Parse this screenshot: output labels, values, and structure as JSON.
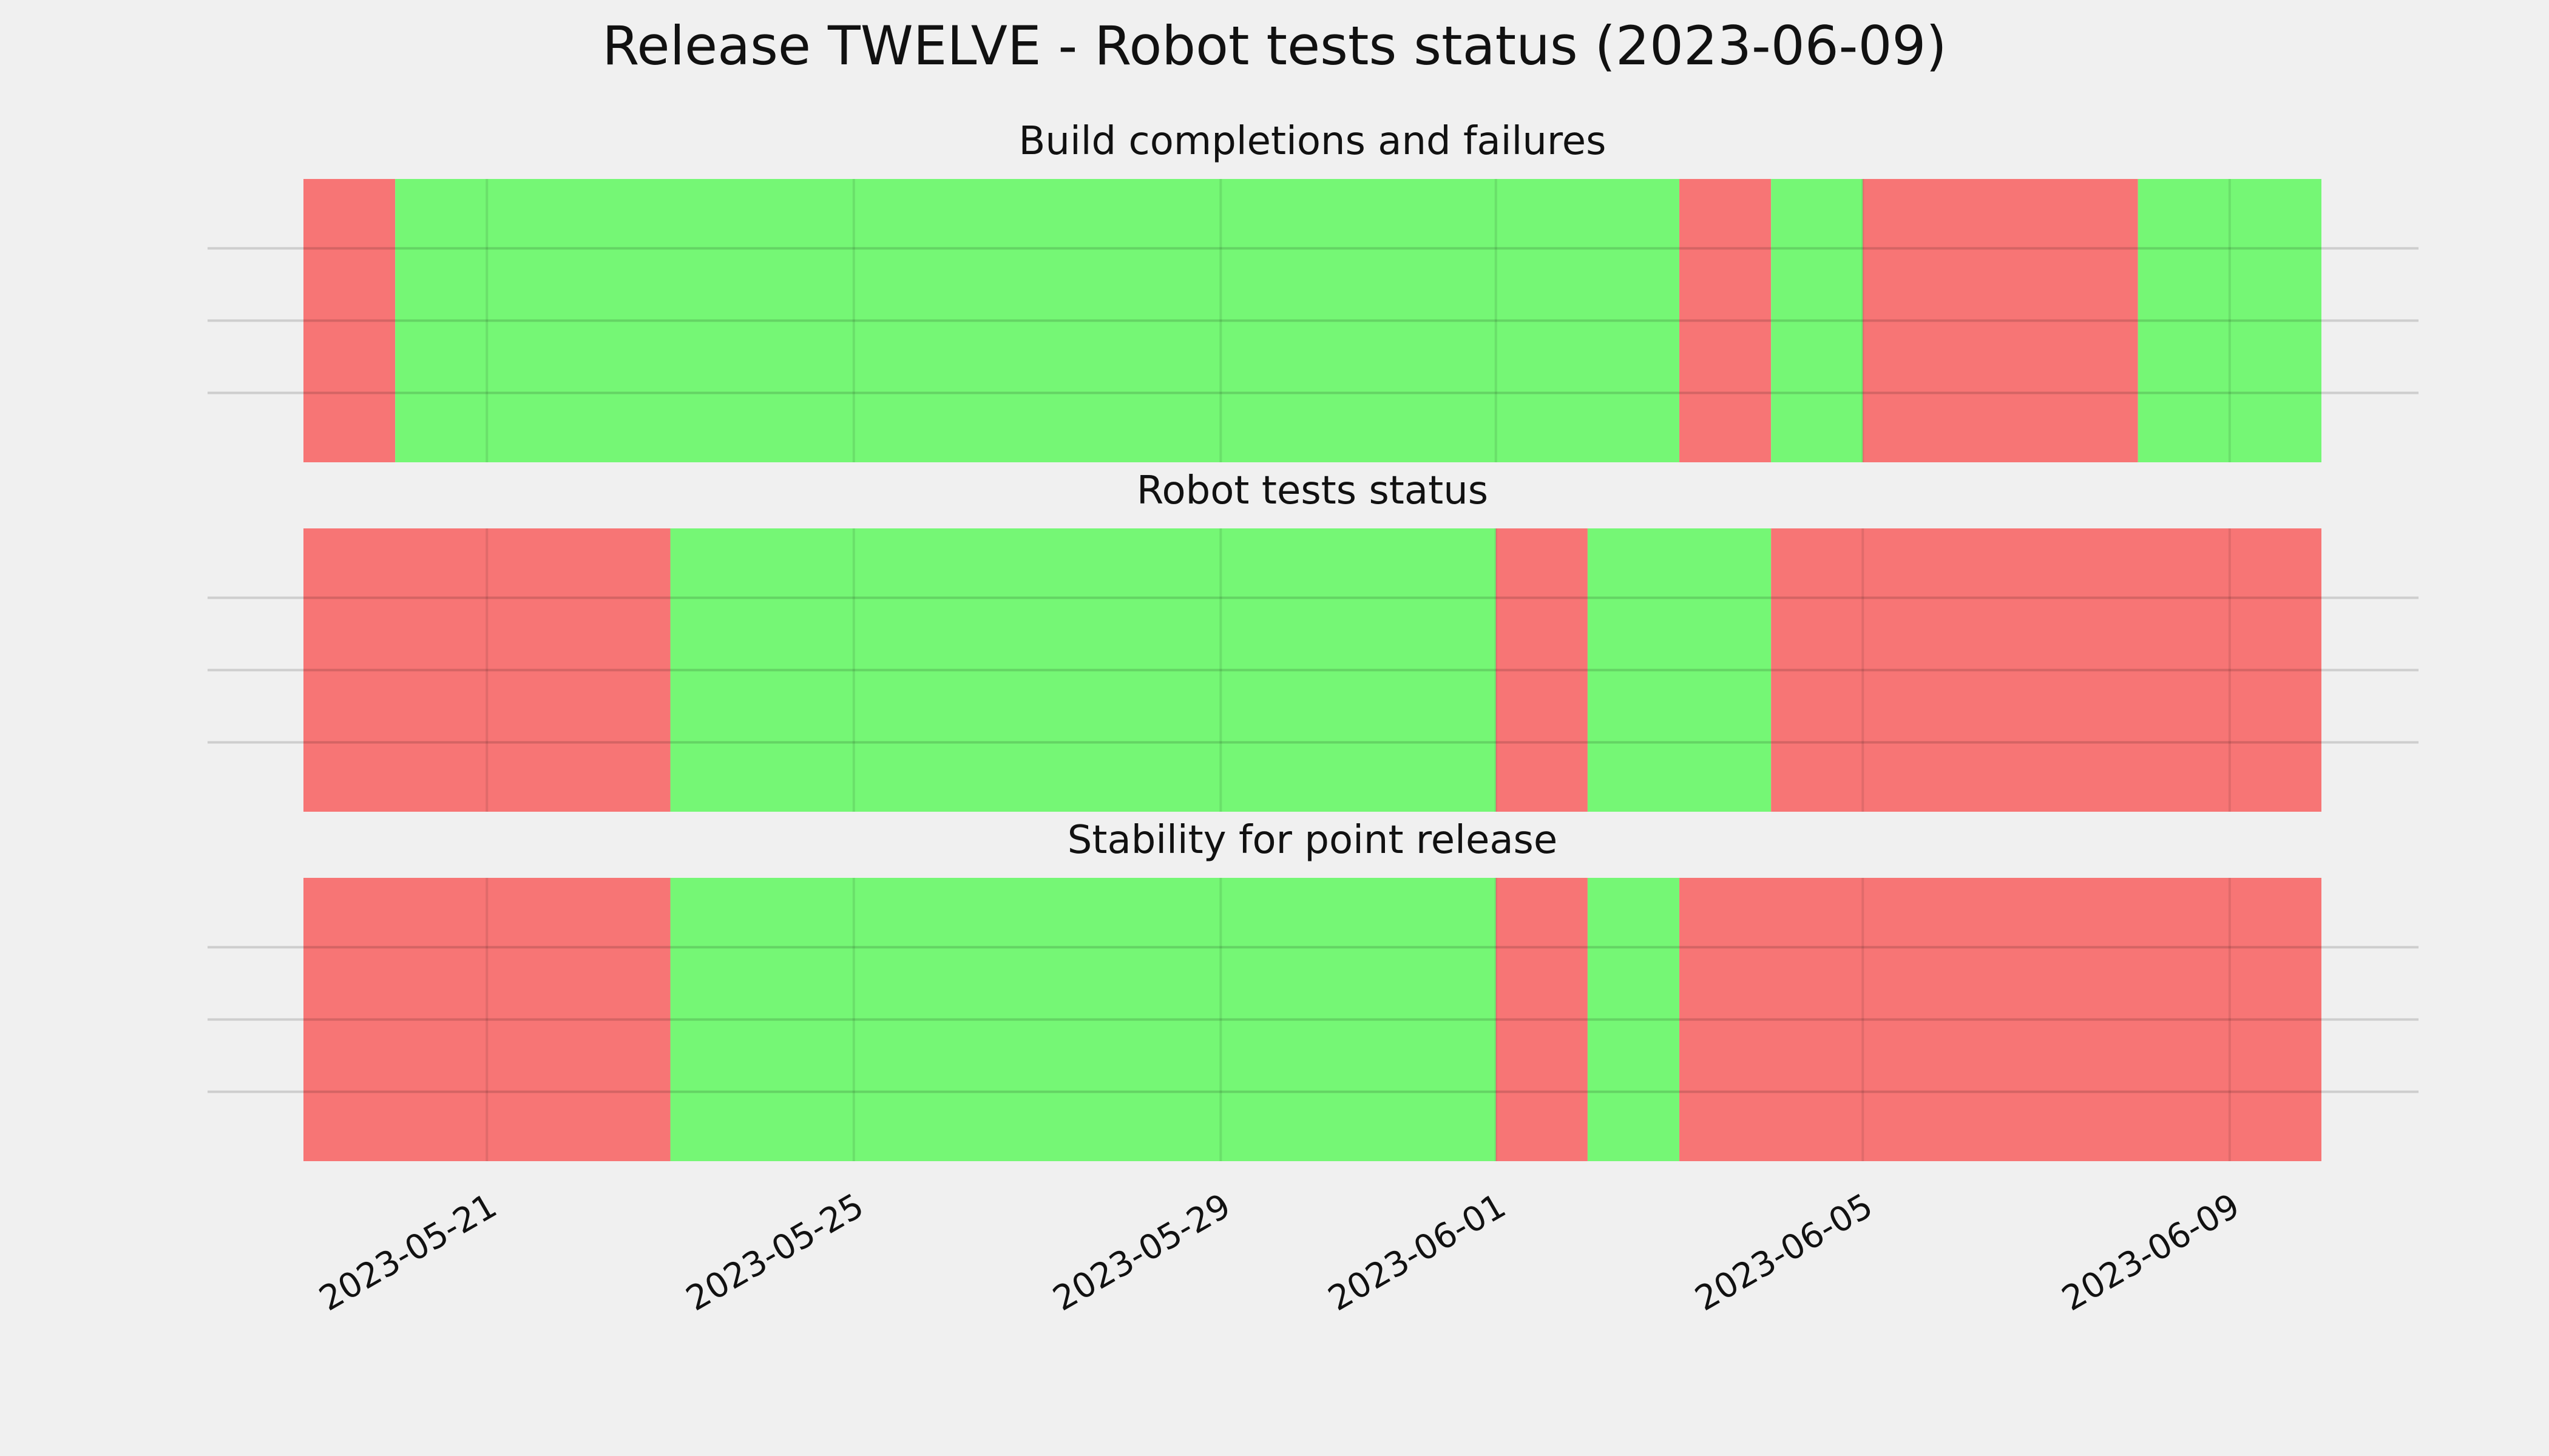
{
  "chart_data": {
    "type": "timeline",
    "title": "Release TWELVE - Robot tests status (2023-06-09)",
    "x_range": [
      "2023-05-19",
      "2023-06-10"
    ],
    "x_ticks": [
      "2023-05-21",
      "2023-05-25",
      "2023-05-29",
      "2023-06-01",
      "2023-06-05",
      "2023-06-09"
    ],
    "grid": true,
    "status_colors": {
      "pass": "#75f775",
      "fail": "#f77575"
    },
    "panels": [
      {
        "title": "Build completions and failures",
        "segments": [
          {
            "start": "2023-05-19",
            "end": "2023-05-20",
            "status": "fail"
          },
          {
            "start": "2023-05-20",
            "end": "2023-06-03",
            "status": "pass"
          },
          {
            "start": "2023-06-03",
            "end": "2023-06-04",
            "status": "fail"
          },
          {
            "start": "2023-06-04",
            "end": "2023-06-05",
            "status": "pass"
          },
          {
            "start": "2023-06-05",
            "end": "2023-06-08",
            "status": "fail"
          },
          {
            "start": "2023-06-08",
            "end": "2023-06-10",
            "status": "pass"
          }
        ]
      },
      {
        "title": "Robot tests status",
        "segments": [
          {
            "start": "2023-05-19",
            "end": "2023-05-23",
            "status": "fail"
          },
          {
            "start": "2023-05-23",
            "end": "2023-06-01",
            "status": "pass"
          },
          {
            "start": "2023-06-01",
            "end": "2023-06-02",
            "status": "fail"
          },
          {
            "start": "2023-06-02",
            "end": "2023-06-04",
            "status": "pass"
          },
          {
            "start": "2023-06-04",
            "end": "2023-06-10",
            "status": "fail"
          }
        ]
      },
      {
        "title": "Stability for point release",
        "segments": [
          {
            "start": "2023-05-19",
            "end": "2023-05-23",
            "status": "fail"
          },
          {
            "start": "2023-05-23",
            "end": "2023-06-01",
            "status": "pass"
          },
          {
            "start": "2023-06-01",
            "end": "2023-06-02",
            "status": "fail"
          },
          {
            "start": "2023-06-02",
            "end": "2023-06-03",
            "status": "pass"
          },
          {
            "start": "2023-06-03",
            "end": "2023-06-10",
            "status": "fail"
          }
        ]
      }
    ]
  }
}
